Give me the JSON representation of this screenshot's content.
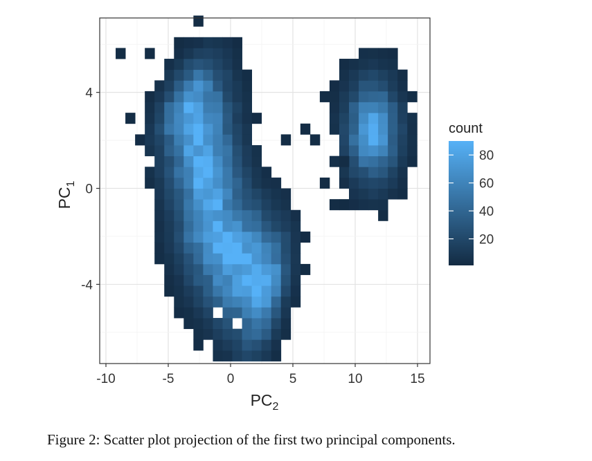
{
  "caption": "Figure 2: Scatter plot projection of the first two principal components.",
  "chart_data": {
    "type": "heatmap",
    "subtype": "2d-binned-count",
    "title": "",
    "xlabel": {
      "base": "PC",
      "sub": "2"
    },
    "ylabel": {
      "base": "PC",
      "sub": "1"
    },
    "xlim": [
      -10.5,
      16
    ],
    "ylim": [
      -7.3,
      7.1
    ],
    "xticks": [
      -10,
      -5,
      0,
      5,
      10,
      15
    ],
    "xtick_labels": [
      "-10",
      "-5",
      "0",
      "5",
      "10",
      "15"
    ],
    "yticks": [
      -4,
      0,
      4
    ],
    "ytick_labels": [
      "-4",
      "0",
      "4"
    ],
    "grid": true,
    "legend": {
      "title": "count",
      "placement": "right",
      "range": [
        1,
        90
      ],
      "ticks": [
        20,
        40,
        60,
        80
      ],
      "tick_labels": [
        "20",
        "40",
        "60",
        "80"
      ],
      "color_low": "#132b43",
      "color_high": "#56b1f7"
    },
    "bins": {
      "x_start": -10,
      "y_start": -7.2,
      "width": 0.78,
      "height": 0.45
    },
    "clusters": [
      {
        "name": "",
        "points": [
          [
            -3.2,
            3.4
          ],
          [
            -2.6,
            2.4
          ],
          [
            -2.1,
            0.8
          ],
          [
            -1.4,
            -1.4
          ],
          [
            0.2,
            -2.8
          ],
          [
            1.6,
            -3.6
          ],
          [
            2.6,
            -4.2
          ]
        ],
        "sigma_cross": 1.75,
        "sigma_along": 1.2,
        "peak": 84,
        "threshold": 2
      },
      {
        "name": "",
        "points": [
          [
            11.4,
            2.4
          ]
        ],
        "sigma_cross": 1.35,
        "sigma_along": 1.35,
        "peak": 80,
        "threshold": 2
      }
    ],
    "stray_bins": [
      [
        -9,
        5.5
      ],
      [
        -8.1,
        2.9
      ],
      [
        -2.6,
        6.8
      ],
      [
        5.6,
        2.3
      ],
      [
        8.3,
        -0.7
      ],
      [
        7.3,
        0.2
      ],
      [
        7.9,
        3.8
      ],
      [
        4.7,
        1.8
      ],
      [
        6.7,
        2.0
      ],
      [
        -6.8,
        5.5
      ],
      [
        -4.3,
        5.9
      ],
      [
        9.4,
        1.2
      ]
    ],
    "stray_value": 2,
    "holes": [
      [
        -6.8,
        1.1
      ],
      [
        -1.0,
        -5.2
      ],
      [
        0.6,
        -5.6
      ],
      [
        4.9,
        1.2
      ],
      [
        -5.9,
        5.0
      ],
      [
        8.2,
        1.8
      ],
      [
        -7.2,
        1.5
      ]
    ]
  }
}
